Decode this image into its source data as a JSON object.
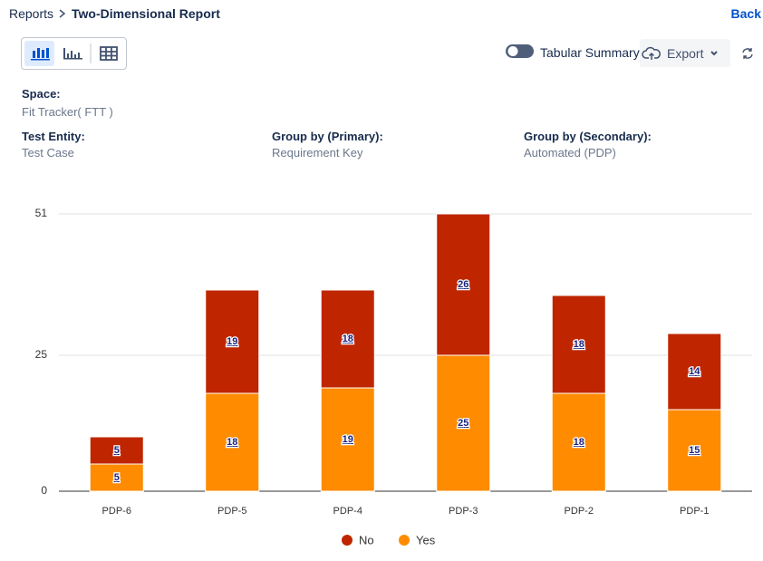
{
  "breadcrumb": {
    "parent": "Reports",
    "current": "Two-Dimensional Report"
  },
  "back": "Back",
  "toolbar": {
    "tabular_summary": "Tabular Summary",
    "export": "Export"
  },
  "fields": [
    {
      "label": "Space:",
      "value": "Fit Tracker( FTT )"
    },
    {
      "label": "Test Entity:",
      "value": "Test Case"
    },
    {
      "label": "Group by (Primary):",
      "value": "Requirement Key"
    },
    {
      "label": "Group by (Secondary):",
      "value": "Automated (PDP)"
    }
  ],
  "chart_data": {
    "type": "bar",
    "stacked": true,
    "categories": [
      "PDP-6",
      "PDP-5",
      "PDP-4",
      "PDP-3",
      "PDP-2",
      "PDP-1"
    ],
    "series": [
      {
        "name": "No",
        "color": "#bf2600",
        "values": [
          5,
          19,
          18,
          26,
          18,
          14
        ]
      },
      {
        "name": "Yes",
        "color": "#ff8b00",
        "values": [
          5,
          18,
          19,
          25,
          18,
          15
        ]
      }
    ],
    "ylim": [
      0,
      51
    ],
    "yticks": [
      0,
      25,
      51
    ],
    "grid": true
  }
}
